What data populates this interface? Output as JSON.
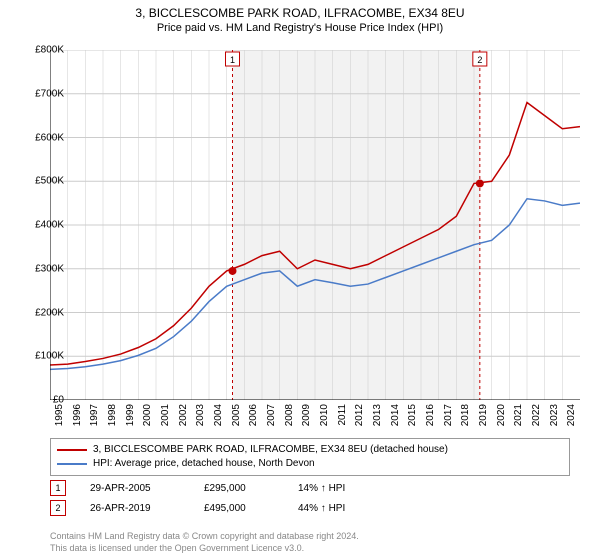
{
  "header": {
    "title": "3, BICCLESCOMBE PARK ROAD, ILFRACOMBE, EX34 8EU",
    "subtitle": "Price paid vs. HM Land Registry's House Price Index (HPI)"
  },
  "chart": {
    "type": "line",
    "background_color": "#ffffff",
    "grid_color": "#cccccc",
    "shaded_band_color": "#f2f2f2",
    "marker_line_color": "#c00000",
    "marker_dot_color": "#c00000",
    "x_years": [
      1995,
      1996,
      1997,
      1998,
      1999,
      2000,
      2001,
      2002,
      2003,
      2004,
      2005,
      2006,
      2007,
      2008,
      2009,
      2010,
      2011,
      2012,
      2013,
      2014,
      2015,
      2016,
      2017,
      2018,
      2019,
      2020,
      2021,
      2022,
      2023,
      2024
    ],
    "x_plot_start": 1995,
    "x_plot_end": 2025,
    "ylim": [
      0,
      800000
    ],
    "y_ticks": [
      0,
      100000,
      200000,
      300000,
      400000,
      500000,
      600000,
      700000,
      800000
    ],
    "y_tick_labels": [
      "£0",
      "£100K",
      "£200K",
      "£300K",
      "£400K",
      "£500K",
      "£600K",
      "£700K",
      "£800K"
    ],
    "series": [
      {
        "name": "property",
        "label": "3, BICCLESCOMBE PARK ROAD, ILFRACOMBE, EX34 8EU (detached house)",
        "color": "#c00000",
        "line_width": 1.5,
        "values_by_year": {
          "1995": 80000,
          "1996": 82000,
          "1997": 88000,
          "1998": 95000,
          "1999": 105000,
          "2000": 120000,
          "2001": 140000,
          "2002": 170000,
          "2003": 210000,
          "2004": 260000,
          "2005": 295000,
          "2006": 310000,
          "2007": 330000,
          "2008": 340000,
          "2009": 300000,
          "2010": 320000,
          "2011": 310000,
          "2012": 300000,
          "2013": 310000,
          "2014": 330000,
          "2015": 350000,
          "2016": 370000,
          "2017": 390000,
          "2018": 420000,
          "2019": 495000,
          "2020": 500000,
          "2021": 560000,
          "2022": 680000,
          "2023": 650000,
          "2024": 620000,
          "2025": 625000
        }
      },
      {
        "name": "hpi",
        "label": "HPI: Average price, detached house, North Devon",
        "color": "#4a7bc8",
        "line_width": 1.5,
        "values_by_year": {
          "1995": 70000,
          "1996": 72000,
          "1997": 76000,
          "1998": 82000,
          "1999": 90000,
          "2000": 102000,
          "2001": 118000,
          "2002": 145000,
          "2003": 180000,
          "2004": 225000,
          "2005": 260000,
          "2006": 275000,
          "2007": 290000,
          "2008": 295000,
          "2009": 260000,
          "2010": 275000,
          "2011": 268000,
          "2012": 260000,
          "2013": 265000,
          "2014": 280000,
          "2015": 295000,
          "2016": 310000,
          "2017": 325000,
          "2018": 340000,
          "2019": 355000,
          "2020": 365000,
          "2021": 400000,
          "2022": 460000,
          "2023": 455000,
          "2024": 445000,
          "2025": 450000
        }
      }
    ],
    "sale_markers": [
      {
        "index": 1,
        "year": 2005.33,
        "price": 295000,
        "date": "29-APR-2005",
        "price_label": "£295,000",
        "pct_label": "14% ↑ HPI"
      },
      {
        "index": 2,
        "year": 2019.33,
        "price": 495000,
        "date": "26-APR-2019",
        "price_label": "£495,000",
        "pct_label": "44% ↑ HPI"
      }
    ]
  },
  "footer": {
    "line1": "Contains HM Land Registry data © Crown copyright and database right 2024.",
    "line2": "This data is licensed under the Open Government Licence v3.0."
  }
}
